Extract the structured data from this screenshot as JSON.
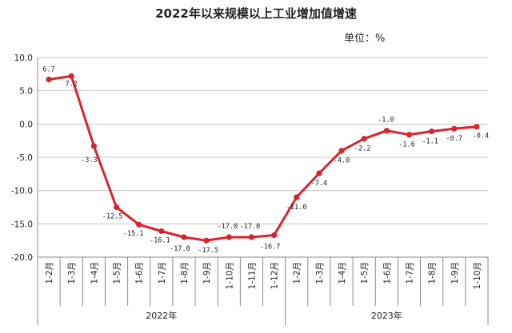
{
  "title": "2022年以来规模以上工业增加值增速",
  "unit_label": "单位：%",
  "chart_data": {
    "type": "line",
    "title": "2022年以来规模以上工业增加值增速",
    "unit": "单位：%",
    "categories": [
      "1-2月",
      "1-3月",
      "1-4月",
      "1-5月",
      "1-6月",
      "1-7月",
      "1-8月",
      "1-9月",
      "1-10月",
      "1-11月",
      "1-12月",
      "1-2月",
      "1-3月",
      "1-4月",
      "1-5月",
      "1-6月",
      "1-7月",
      "1-8月",
      "1-9月",
      "1-10月"
    ],
    "groups": [
      {
        "label": "2022年",
        "count": 11
      },
      {
        "label": "2023年",
        "count": 9
      }
    ],
    "series": [
      {
        "values": [
          6.7,
          7.2,
          -3.3,
          -12.5,
          -15.1,
          -16.1,
          -17.0,
          -17.5,
          -17.0,
          -17.0,
          -16.7,
          -11.0,
          -7.4,
          -4.0,
          -2.2,
          -1.0,
          -1.6,
          -1.1,
          -0.7,
          -0.4
        ],
        "color": "#d9232e"
      }
    ],
    "data_labels": [
      "6.7",
      "7.2",
      "-3.3",
      "-12.5",
      "-15.1",
      "-16.1",
      "-17.0",
      "-17.5",
      "-17.0",
      "-17.0",
      "-16.7",
      "-11.0",
      "-7.4",
      "-4.0",
      "-2.2",
      "-1.0",
      "-1.6",
      "-1.1",
      "-0.7",
      "-0.4"
    ],
    "yticks": [
      "10.0",
      "5.0",
      "0.0",
      "-5.0",
      "-10.0",
      "-15.0",
      "-20.0"
    ],
    "ylim": [
      -20,
      10
    ],
    "grid": true
  }
}
